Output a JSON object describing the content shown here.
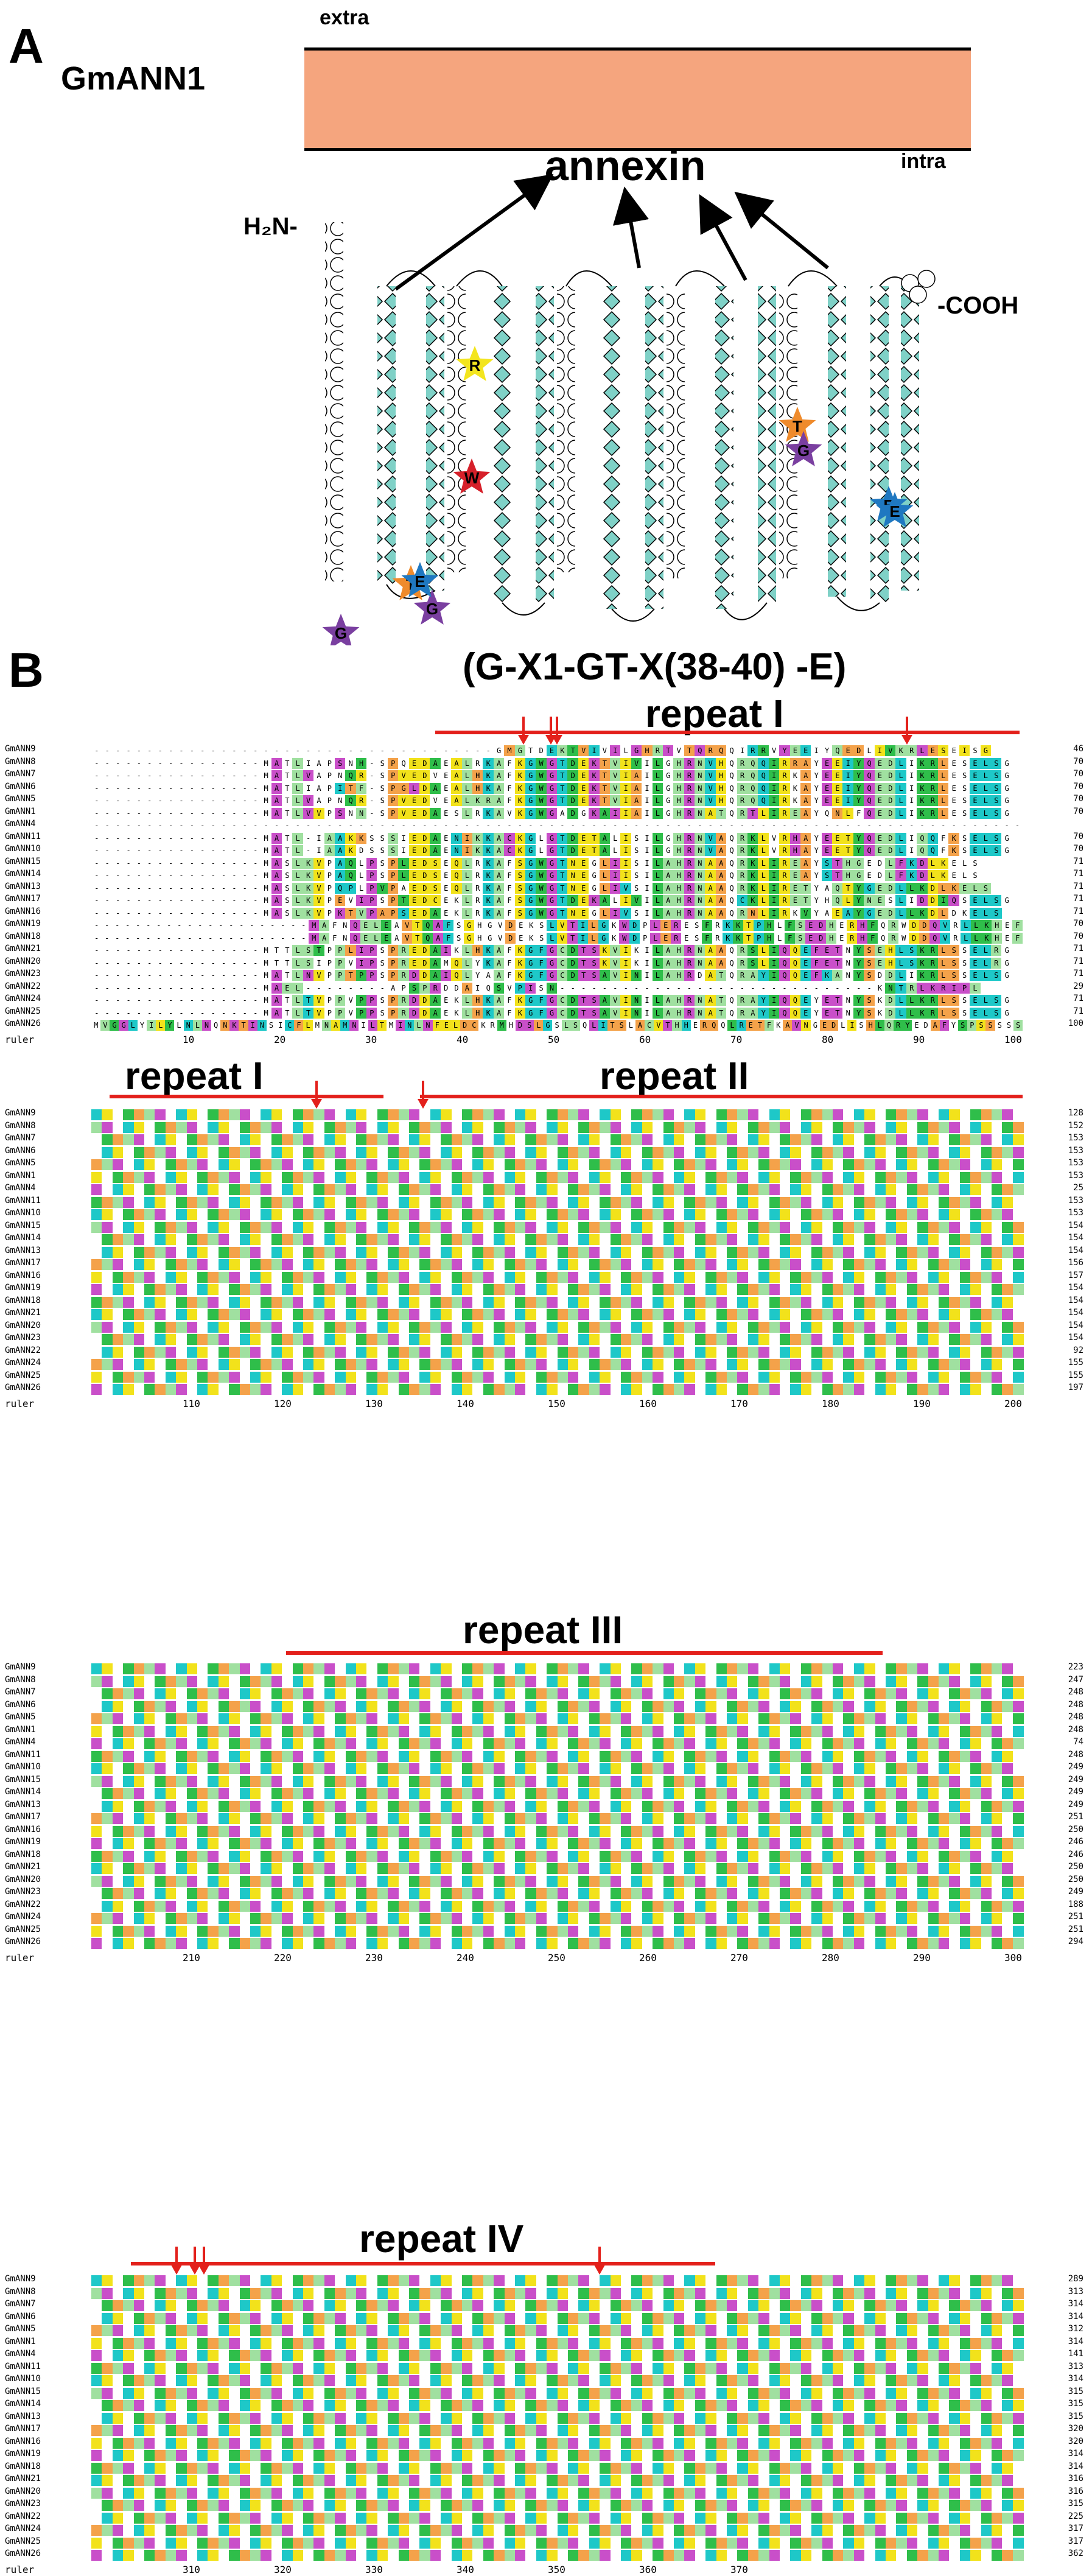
{
  "panelA": {
    "letter": "A",
    "protein": "GmANN1",
    "extra_label": "extra",
    "intra_label": "intra",
    "annexin_label": "annexin",
    "n_term": "H₂N-",
    "c_term": "-COOH",
    "stars": [
      {
        "residue": "R",
        "color": "#f3e51e"
      },
      {
        "residue": "W",
        "color": "#d6202a"
      },
      {
        "residue": "T",
        "color": "#ef8b2c"
      },
      {
        "residue": "G",
        "color": "#7a3fa0"
      },
      {
        "residue": "E",
        "color": "#1f78c1"
      },
      {
        "residue": "T",
        "color": "#ef8b2c"
      },
      {
        "residue": "G",
        "color": "#7a3fa0"
      },
      {
        "residue": "G",
        "color": "#7a3fa0"
      },
      {
        "residue": "E",
        "color": "#1f78c1"
      },
      {
        "residue": "E",
        "color": "#1f78c1"
      }
    ],
    "colors": {
      "membrane": "#f5a57e",
      "helix_fill": "#7fd1c7",
      "star_red": "#d6202a"
    }
  },
  "panelB": {
    "letter": "B",
    "motif": "(G-X1-GT-X(38-40) -E)",
    "repeats": [
      "repeat I",
      "repeat I",
      "repeat II",
      "repeat III",
      "repeat IV"
    ],
    "ruler_label": "ruler",
    "sequence_names": [
      "GmANN9",
      "GmANN8",
      "GmANN7",
      "GmANN6",
      "GmANN5",
      "GmANN1",
      "GmANN4",
      "GmANN11",
      "GmANN10",
      "GmANN15",
      "GmANN14",
      "GmANN13",
      "GmANN17",
      "GmANN16",
      "GmANN19",
      "GmANN18",
      "GmANN21",
      "GmANN20",
      "GmANN23",
      "GmANN22",
      "GmANN24",
      "GmANN25",
      "GmANN26"
    ],
    "block1_ends": [
      "46",
      "70",
      "70",
      "70",
      "70",
      "70",
      "",
      "70",
      "70",
      "71",
      "71",
      "71",
      "71",
      "71",
      "70",
      "70",
      "71",
      "71",
      "71",
      "29",
      "71",
      "71",
      "100"
    ],
    "block1_ruler": [
      "10",
      "20",
      "30",
      "40",
      "50",
      "60",
      "70",
      "80",
      "90",
      "100"
    ],
    "block2_ends": [
      "128",
      "152",
      "153",
      "153",
      "153",
      "153",
      "25",
      "153",
      "153",
      "154",
      "154",
      "154",
      "156",
      "157",
      "154",
      "154",
      "154",
      "154",
      "154",
      "92",
      "155",
      "155",
      "197"
    ],
    "block2_ruler": [
      "110",
      "120",
      "130",
      "140",
      "150",
      "160",
      "170",
      "180",
      "190",
      "200"
    ],
    "block3_ends": [
      "223",
      "247",
      "248",
      "248",
      "248",
      "248",
      "74",
      "248",
      "249",
      "249",
      "249",
      "249",
      "251",
      "250",
      "246",
      "246",
      "250",
      "250",
      "249",
      "188",
      "251",
      "251",
      "294"
    ],
    "block3_ruler": [
      "210",
      "220",
      "230",
      "240",
      "250",
      "260",
      "270",
      "280",
      "290",
      "300"
    ],
    "block4_ends": [
      "289",
      "313",
      "314",
      "314",
      "312",
      "314",
      "141",
      "313",
      "314",
      "315",
      "315",
      "315",
      "320",
      "320",
      "314",
      "314",
      "316",
      "316",
      "315",
      "225",
      "317",
      "317",
      "362"
    ],
    "block4_ruler": [
      "310",
      "320",
      "330",
      "340",
      "350",
      "360",
      "370"
    ],
    "block1_seqs": [
      "--------------------------------------GMGTDEKTVIVILGHRTVTQRQQIRRVYEEIYQEDLIVKRLESEISG",
      "----------------MATLIAPSNH-SPQEDAEALRKAFKGWGTDEKTVIVILGHRNVHQRQQIRRAYEEIYQEDLIKRLESELSG",
      "----------------MATLVAPNQR-SPVEDVEALHKAFKGWGTDEKTVIAILGHRNVHQRQQIRKAYEEIYQEDLIKRLESELSG",
      "----------------MATLIAPITF-SPGLDAEALHKAFKGWGTDEKTVIAILGHRNVHQRQQIRKAYEEIYQEDLIKRLESELSG",
      "----------------MATLVAPNQR-SPVEDVEALKRAFKGWGTDEKTVIAILGHRNVHQRQQIRKAYEEIYQEDLIKRLESELSG",
      "----------------MATLVVPSNN-SPVEDAESLRKAVKGWGADGKAIIAILGHRNATQRTLIREAYQNLFQEDLIKRLESELSG",
      "----------------------------------------------------------------------------------------",
      "----------------MATL-IAAKKSSSIEDAENIKKACKGLGTDETALISILGHRNVAQRKLVRHAYEETYQEDLIQQFKSELSG",
      "----------------MATL-IAAKDSSSIEDAENIKKACKGLGTDETALISILGHRNVAQRKLVRHAYEETYQEDLIQQFKSELSG",
      "----------------MASLKVPAQLPSPLEDSEQLRKAFSGWGTNEGLIISILAHRNAAQRKLIREAYSTHGEDLFKDLKELS",
      "----------------MASLKVPAQLPSPLEDSEQLRKAFSGWGTNEGLIISILAHRNAAQRKLIREAYSTHGEDLFKDLKELS",
      "----------------MASLKVPQPLPVPAEDSEQLRKAFSGWGTNEGLIVSILAHRNAAQRKLIRETYAQTYGEDLLKDLKELS",
      "----------------MASLKVPEVIPSPTEDCEKLRKAFSGWGTDEKALIVILAHRNAAQCKLIRETYHQLYNESLIDDIQSELSG",
      "----------------MASLKVPKTVPAPSEDAEKLRKAFSGWGTNEGLIVSILAHRNAAQRNLIRKVYAEAYGEDLLKDLDKELS",
      "---------------------MAFNQELEAVTQAFSGHGVDEKSLVTILGKWDPLERESFRKKTPHLFSEDHERHFQRWDDQVRLLKHEF",
      "---------------------MAFNQELEAVTQAFSGHGVDEKSLVTILGKWDPLERESFRKKTPHLFSEDHERHFQRWDDQVRLLKHEF",
      "----------------MTTLSTPPLIPSPREDAIKLHKAFKGFGCDTSKVIKILAHRNAAQRSLIQQEFETNYSEHLSKRLSSELRG",
      "----------------MTTLSIPPVIPSPREDAMQLYKAFKGFGCDTSKVIKILAHRNAAQRSLIQQEFETNYSEHLSKRLSSELRG",
      "----------------MATLNVPPTPPSPRDDAIQLYAAFKGFGCDTSAVINILAHRDATQRAYIQQEFKANYSDDLIKRLSSELSG",
      "----------------MAEL--------APSPRDDAIQSVPISN------------------------------KNTRLKRIPL",
      "----------------MATLTVPPVPPSPRDDAEKLHKAFKGFGCDTSAVINILAHRNATQRAYIQQEYETNYSKDLLKRLSSELSG",
      "----------------MATLTVPPVPPSPRDDAEKLHKAFKGFGCDTSAVINILAHRNATQRAYIQQEYETNYSKDLLKRLSSELSG",
      "MVGGLYILYLNLNQNKTINSICFLMNAMNILTMINLNFELDCKRMHDSLGSLSQLITSLACVTHHERQQLRETFKAVNGEDLISHLQRYEDAFYSPSSSSS"
    ]
  }
}
